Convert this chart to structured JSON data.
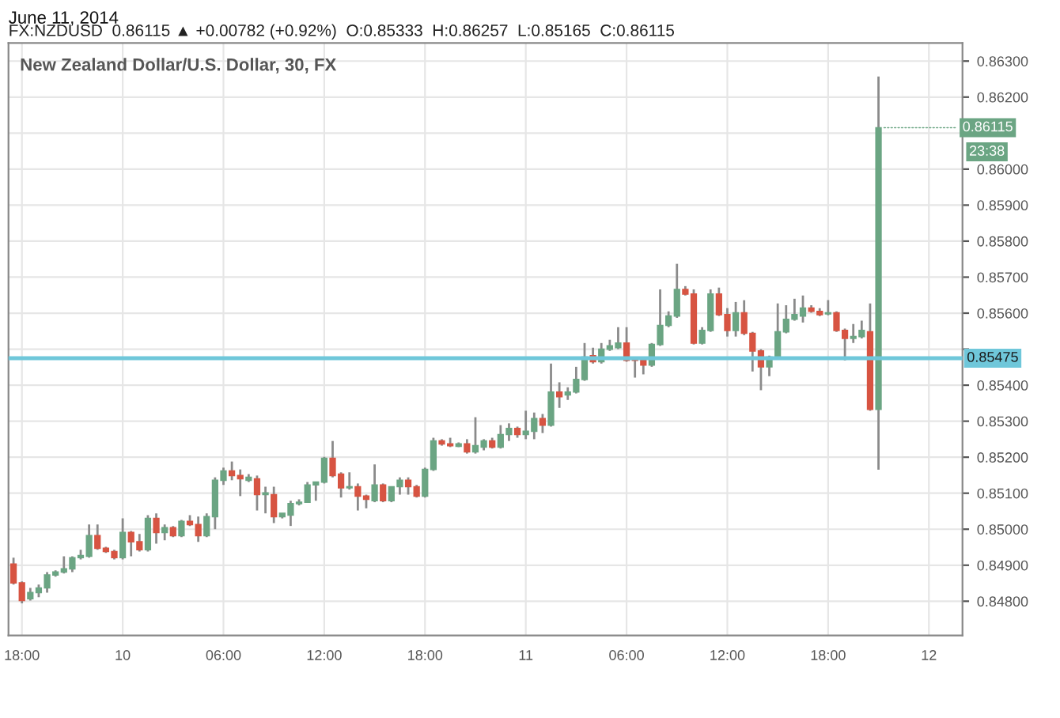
{
  "chart_data": {
    "type": "candlestick",
    "title": "June 11, 2014",
    "subtitle": "New Zealand Dollar/U.S. Dollar, 30, FX",
    "annotations": [
      "FX:NZDUSD  0.86115 ▲ +0.00782 (+0.92%)  O:0.85333  H:0.86257  L:0.85165  C:0.86115",
      {
        "text": "0.86115",
        "x": "2014-06-11T21:00",
        "y": 0.86115
      },
      "23:38"
    ],
    "x": [
      "2014-06-09T17:30",
      "2014-06-09T18:00",
      "2014-06-09T18:30",
      "2014-06-09T19:00",
      "2014-06-09T19:30",
      "2014-06-09T20:00",
      "2014-06-09T20:30",
      "2014-06-09T21:00",
      "2014-06-09T21:30",
      "2014-06-09T22:00",
      "2014-06-09T22:30",
      "2014-06-09T23:00",
      "2014-06-09T23:30",
      "2014-06-10T00:00",
      "2014-06-10T00:30",
      "2014-06-10T01:00",
      "2014-06-10T01:30",
      "2014-06-10T02:00",
      "2014-06-10T02:30",
      "2014-06-10T03:00",
      "2014-06-10T03:30",
      "2014-06-10T04:00",
      "2014-06-10T04:30",
      "2014-06-10T05:00",
      "2014-06-10T05:30",
      "2014-06-10T06:00",
      "2014-06-10T06:30",
      "2014-06-10T07:00",
      "2014-06-10T07:30",
      "2014-06-10T08:00",
      "2014-06-10T08:30",
      "2014-06-10T09:00",
      "2014-06-10T09:30",
      "2014-06-10T10:00",
      "2014-06-10T10:30",
      "2014-06-10T11:00",
      "2014-06-10T11:30",
      "2014-06-10T12:00",
      "2014-06-10T12:30",
      "2014-06-10T13:00",
      "2014-06-10T13:30",
      "2014-06-10T14:00",
      "2014-06-10T14:30",
      "2014-06-10T15:00",
      "2014-06-10T15:30",
      "2014-06-10T16:00",
      "2014-06-10T16:30",
      "2014-06-10T17:00",
      "2014-06-10T17:30",
      "2014-06-10T18:00",
      "2014-06-10T18:30",
      "2014-06-10T19:00",
      "2014-06-10T19:30",
      "2014-06-10T20:00",
      "2014-06-10T20:30",
      "2014-06-10T21:00",
      "2014-06-10T21:30",
      "2014-06-10T22:00",
      "2014-06-10T22:30",
      "2014-06-10T23:00",
      "2014-06-10T23:30",
      "2014-06-11T00:00",
      "2014-06-11T00:30",
      "2014-06-11T01:00",
      "2014-06-11T01:30",
      "2014-06-11T02:00",
      "2014-06-11T02:30",
      "2014-06-11T03:00",
      "2014-06-11T03:30",
      "2014-06-11T04:00",
      "2014-06-11T04:30",
      "2014-06-11T05:00",
      "2014-06-11T05:30",
      "2014-06-11T06:00",
      "2014-06-11T06:30",
      "2014-06-11T07:00",
      "2014-06-11T07:30",
      "2014-06-11T08:00",
      "2014-06-11T08:30",
      "2014-06-11T09:00",
      "2014-06-11T09:30",
      "2014-06-11T10:00",
      "2014-06-11T10:30",
      "2014-06-11T11:00",
      "2014-06-11T11:30",
      "2014-06-11T12:00",
      "2014-06-11T12:30",
      "2014-06-11T13:00",
      "2014-06-11T13:30",
      "2014-06-11T14:00",
      "2014-06-11T14:30",
      "2014-06-11T15:00",
      "2014-06-11T15:30",
      "2014-06-11T16:00",
      "2014-06-11T16:30",
      "2014-06-11T17:00",
      "2014-06-11T17:30",
      "2014-06-11T18:00",
      "2014-06-11T18:30",
      "2014-06-11T19:00",
      "2014-06-11T19:30",
      "2014-06-11T20:00",
      "2014-06-11T20:30",
      "2014-06-11T21:00"
    ],
    "ohlc": [
      [
        0.84903,
        0.84921,
        0.84846,
        0.84851
      ],
      [
        0.84851,
        0.84855,
        0.84794,
        0.84802
      ],
      [
        0.84807,
        0.84837,
        0.84802,
        0.84824
      ],
      [
        0.84824,
        0.84846,
        0.84811,
        0.84837
      ],
      [
        0.84837,
        0.84881,
        0.84824,
        0.84873
      ],
      [
        0.84873,
        0.84886,
        0.84868,
        0.84881
      ],
      [
        0.84881,
        0.84925,
        0.84877,
        0.8489
      ],
      [
        0.8489,
        0.84925,
        0.84881,
        0.84921
      ],
      [
        0.84921,
        0.84943,
        0.84916,
        0.84927
      ],
      [
        0.84925,
        0.85013,
        0.84921,
        0.84982
      ],
      [
        0.84982,
        0.85013,
        0.84943,
        0.84947
      ],
      [
        0.84947,
        0.84951,
        0.84934,
        0.84938
      ],
      [
        0.84938,
        0.84943,
        0.84916,
        0.84921
      ],
      [
        0.84921,
        0.8503,
        0.84916,
        0.84991
      ],
      [
        0.84991,
        0.84995,
        0.84925,
        0.84965
      ],
      [
        0.84965,
        0.84987,
        0.84938,
        0.84943
      ],
      [
        0.84943,
        0.85039,
        0.84938,
        0.8503
      ],
      [
        0.8503,
        0.85044,
        0.8496,
        0.84991
      ],
      [
        0.84991,
        0.85013,
        0.84969,
        0.85004
      ],
      [
        0.85004,
        0.85009,
        0.84978,
        0.84982
      ],
      [
        0.84982,
        0.85026,
        0.84978,
        0.85022
      ],
      [
        0.85022,
        0.85039,
        0.85009,
        0.85013
      ],
      [
        0.85013,
        0.85035,
        0.84965,
        0.84982
      ],
      [
        0.84982,
        0.85044,
        0.84978,
        0.85035
      ],
      [
        0.85035,
        0.85144,
        0.85,
        0.85136
      ],
      [
        0.85136,
        0.85171,
        0.85123,
        0.85162
      ],
      [
        0.85162,
        0.85188,
        0.85136,
        0.85149
      ],
      [
        0.85149,
        0.85166,
        0.85092,
        0.8514
      ],
      [
        0.85136,
        0.85153,
        0.85131,
        0.85144
      ],
      [
        0.8514,
        0.85149,
        0.85052,
        0.85096
      ],
      [
        0.85096,
        0.85118,
        0.85044,
        0.85101
      ],
      [
        0.85096,
        0.85118,
        0.85017,
        0.85035
      ],
      [
        0.85035,
        0.85044,
        0.8503,
        0.85044
      ],
      [
        0.85039,
        0.85079,
        0.85009,
        0.85071
      ],
      [
        0.85071,
        0.85083,
        0.85066,
        0.85075
      ],
      [
        0.85075,
        0.85131,
        0.85075,
        0.85123
      ],
      [
        0.85123,
        0.85131,
        0.85079,
        0.85131
      ],
      [
        0.85131,
        0.85201,
        0.85127,
        0.85197
      ],
      [
        0.85197,
        0.85245,
        0.85144,
        0.85149
      ],
      [
        0.85153,
        0.85158,
        0.85088,
        0.85115
      ],
      [
        0.85115,
        0.85158,
        0.8511,
        0.85118
      ],
      [
        0.85118,
        0.85127,
        0.85052,
        0.85092
      ],
      [
        0.85092,
        0.85096,
        0.85058,
        0.85083
      ],
      [
        0.85079,
        0.8518,
        0.85075,
        0.85123
      ],
      [
        0.85123,
        0.85127,
        0.85075,
        0.85079
      ],
      [
        0.85079,
        0.85118,
        0.85075,
        0.85118
      ],
      [
        0.85118,
        0.85144,
        0.85096,
        0.85136
      ],
      [
        0.85136,
        0.85144,
        0.85096,
        0.85118
      ],
      [
        0.85118,
        0.85123,
        0.85088,
        0.85092
      ],
      [
        0.85092,
        0.85171,
        0.85088,
        0.85166
      ],
      [
        0.85166,
        0.85254,
        0.85162,
        0.85245
      ],
      [
        0.85245,
        0.8525,
        0.85232,
        0.85237
      ],
      [
        0.85237,
        0.85254,
        0.85228,
        0.85232
      ],
      [
        0.8523,
        0.85241,
        0.85228,
        0.85237
      ],
      [
        0.85237,
        0.8525,
        0.8521,
        0.85215
      ],
      [
        0.85215,
        0.85311,
        0.8521,
        0.85232
      ],
      [
        0.85228,
        0.8525,
        0.85219,
        0.85245
      ],
      [
        0.85245,
        0.85254,
        0.85224,
        0.85228
      ],
      [
        0.85228,
        0.85289,
        0.85224,
        0.85263
      ],
      [
        0.85263,
        0.85294,
        0.85245,
        0.8528
      ],
      [
        0.8528,
        0.85285,
        0.85254,
        0.85263
      ],
      [
        0.85263,
        0.85329,
        0.8525,
        0.85272
      ],
      [
        0.85272,
        0.85324,
        0.8525,
        0.85307
      ],
      [
        0.85307,
        0.8532,
        0.85267,
        0.85289
      ],
      [
        0.85289,
        0.8546,
        0.85285,
        0.85381
      ],
      [
        0.85381,
        0.85408,
        0.85337,
        0.85368
      ],
      [
        0.85373,
        0.85394,
        0.85359,
        0.85381
      ],
      [
        0.85381,
        0.85451,
        0.85377,
        0.85416
      ],
      [
        0.85416,
        0.85517,
        0.85412,
        0.85478
      ],
      [
        0.85482,
        0.85504,
        0.8546,
        0.85465
      ],
      [
        0.85465,
        0.85517,
        0.8546,
        0.855
      ],
      [
        0.855,
        0.85526,
        0.85495,
        0.85509
      ],
      [
        0.85504,
        0.85561,
        0.855,
        0.85517
      ],
      [
        0.85517,
        0.85561,
        0.85465,
        0.85469
      ],
      [
        0.85473,
        0.85478,
        0.85421,
        0.85469
      ],
      [
        0.85473,
        0.85478,
        0.8543,
        0.85456
      ],
      [
        0.85456,
        0.85517,
        0.85451,
        0.85513
      ],
      [
        0.85513,
        0.85666,
        0.85509,
        0.85566
      ],
      [
        0.85566,
        0.85605,
        0.85561,
        0.85592
      ],
      [
        0.85592,
        0.85737,
        0.85587,
        0.85666
      ],
      [
        0.85666,
        0.85675,
        0.85649,
        0.85653
      ],
      [
        0.85653,
        0.85666,
        0.85513,
        0.85517
      ],
      [
        0.85517,
        0.85561,
        0.85513,
        0.85552
      ],
      [
        0.85552,
        0.85666,
        0.85548,
        0.85653
      ],
      [
        0.85653,
        0.85671,
        0.85592,
        0.85596
      ],
      [
        0.85596,
        0.85614,
        0.85535,
        0.85552
      ],
      [
        0.85552,
        0.85631,
        0.85535,
        0.85601
      ],
      [
        0.85601,
        0.85636,
        0.85539,
        0.85544
      ],
      [
        0.85544,
        0.85548,
        0.85438,
        0.85495
      ],
      [
        0.85495,
        0.855,
        0.85386,
        0.85451
      ],
      [
        0.85451,
        0.85482,
        0.85425,
        0.85478
      ],
      [
        0.85478,
        0.85627,
        0.85473,
        0.85548
      ],
      [
        0.85548,
        0.85622,
        0.85544,
        0.85583
      ],
      [
        0.85583,
        0.8564,
        0.85579,
        0.85596
      ],
      [
        0.85592,
        0.85649,
        0.85574,
        0.85614
      ],
      [
        0.85614,
        0.85622,
        0.85601,
        0.85605
      ],
      [
        0.85605,
        0.85614,
        0.85592,
        0.85596
      ],
      [
        0.85598,
        0.85636,
        0.85594,
        0.85601
      ],
      [
        0.85601,
        0.85605,
        0.85548,
        0.85552
      ],
      [
        0.85552,
        0.85557,
        0.85469,
        0.8553
      ],
      [
        0.8553,
        0.8557,
        0.85517,
        0.85535
      ],
      [
        0.85535,
        0.85579,
        0.8553,
        0.85552
      ],
      [
        0.85548,
        0.85627,
        0.85329,
        0.85333
      ],
      [
        0.85333,
        0.86257,
        0.85165,
        0.86115
      ]
    ],
    "xlim": [
      "2014-06-09T17:12",
      "2014-06-12T02:00"
    ],
    "xticks": [
      {
        "value": "2014-06-09T18:00",
        "label": "18:00"
      },
      {
        "value": "2014-06-10T00:00",
        "label": "10"
      },
      {
        "value": "2014-06-10T06:00",
        "label": "06:00"
      },
      {
        "value": "2014-06-10T12:00",
        "label": "12:00"
      },
      {
        "value": "2014-06-10T18:00",
        "label": "18:00"
      },
      {
        "value": "2014-06-11T00:00",
        "label": "11"
      },
      {
        "value": "2014-06-11T06:00",
        "label": "06:00"
      },
      {
        "value": "2014-06-11T12:00",
        "label": "12:00"
      },
      {
        "value": "2014-06-11T18:00",
        "label": "18:00"
      },
      {
        "value": "2014-06-12T00:00",
        "label": "12"
      }
    ],
    "ylim": [
      0.84705,
      0.8635
    ],
    "yticks": [
      {
        "value": 0.848,
        "label": "0.84800"
      },
      {
        "value": 0.849,
        "label": "0.84900"
      },
      {
        "value": 0.85,
        "label": "0.85000"
      },
      {
        "value": 0.851,
        "label": "0.85100"
      },
      {
        "value": 0.852,
        "label": "0.85200"
      },
      {
        "value": 0.853,
        "label": "0.85300"
      },
      {
        "value": 0.854,
        "label": "0.85400"
      },
      {
        "value": 0.855,
        "label": null
      },
      {
        "value": 0.856,
        "label": "0.85600"
      },
      {
        "value": 0.857,
        "label": "0.85700"
      },
      {
        "value": 0.858,
        "label": "0.85800"
      },
      {
        "value": 0.859,
        "label": "0.85900"
      },
      {
        "value": 0.86,
        "label": "0.86000"
      },
      {
        "value": 0.861,
        "label": null
      },
      {
        "value": 0.862,
        "label": "0.86200"
      },
      {
        "value": 0.863,
        "label": "0.86300"
      }
    ],
    "ref_lines": [
      {
        "axis": "y",
        "value": 0.85475,
        "label": "0.85475",
        "color": "#6fc7da"
      }
    ],
    "grid": true
  }
}
